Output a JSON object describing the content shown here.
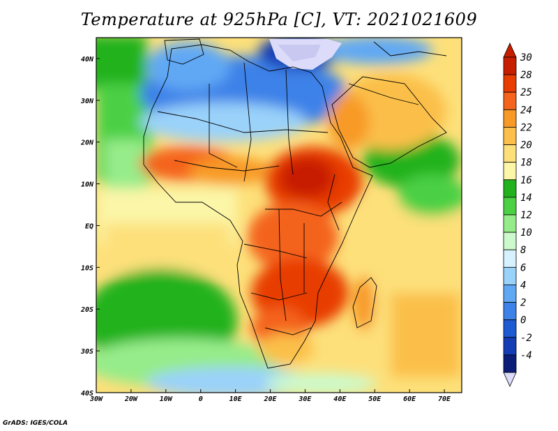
{
  "title": "Temperature at 925hPa [C], VT: 2021021609",
  "credit": "GrADS: IGES/COLA",
  "map": {
    "projection": "latlon",
    "lon_range": [
      -30,
      75
    ],
    "lat_range": [
      -40,
      45
    ],
    "lon_ticks": [
      {
        "value": -30,
        "label": "30W"
      },
      {
        "value": -20,
        "label": "20W"
      },
      {
        "value": -10,
        "label": "10W"
      },
      {
        "value": 0,
        "label": "0"
      },
      {
        "value": 10,
        "label": "10E"
      },
      {
        "value": 20,
        "label": "20E"
      },
      {
        "value": 30,
        "label": "30E"
      },
      {
        "value": 40,
        "label": "40E"
      },
      {
        "value": 50,
        "label": "50E"
      },
      {
        "value": 60,
        "label": "60E"
      },
      {
        "value": 70,
        "label": "70E"
      }
    ],
    "lat_ticks": [
      {
        "value": 40,
        "label": "40N"
      },
      {
        "value": 30,
        "label": "30N"
      },
      {
        "value": 20,
        "label": "20N"
      },
      {
        "value": 10,
        "label": "10N"
      },
      {
        "value": 0,
        "label": "EQ"
      },
      {
        "value": -10,
        "label": "10S"
      },
      {
        "value": -20,
        "label": "20S"
      },
      {
        "value": -30,
        "label": "30S"
      },
      {
        "value": -40,
        "label": "40S"
      }
    ]
  },
  "colorbar": {
    "levels": [
      {
        "label": "30",
        "color": "#c81e00"
      },
      {
        "label": "28",
        "color": "#e83c00"
      },
      {
        "label": "25",
        "color": "#f4641c"
      },
      {
        "label": "24",
        "color": "#f89a28"
      },
      {
        "label": "22",
        "color": "#fbbf4a"
      },
      {
        "label": "20",
        "color": "#fde07a"
      },
      {
        "label": "18",
        "color": "#fbf6a8"
      },
      {
        "label": "16",
        "color": "#22b21e"
      },
      {
        "label": "14",
        "color": "#4cd044"
      },
      {
        "label": "12",
        "color": "#96ec8a"
      },
      {
        "label": "10",
        "color": "#ccfacc"
      },
      {
        "label": "8",
        "color": "#d6f2ff"
      },
      {
        "label": "6",
        "color": "#9ad2fa"
      },
      {
        "label": "4",
        "color": "#60a8f4"
      },
      {
        "label": "2",
        "color": "#3c82e8"
      },
      {
        "label": "0",
        "color": "#1e5ad2"
      },
      {
        "label": "-2",
        "color": "#143cb4"
      },
      {
        "label": "-4",
        "color": "#0a1e78"
      }
    ],
    "overflow_top_color": "#c81e00",
    "underflow_bottom_color": "#dcdcfa"
  }
}
